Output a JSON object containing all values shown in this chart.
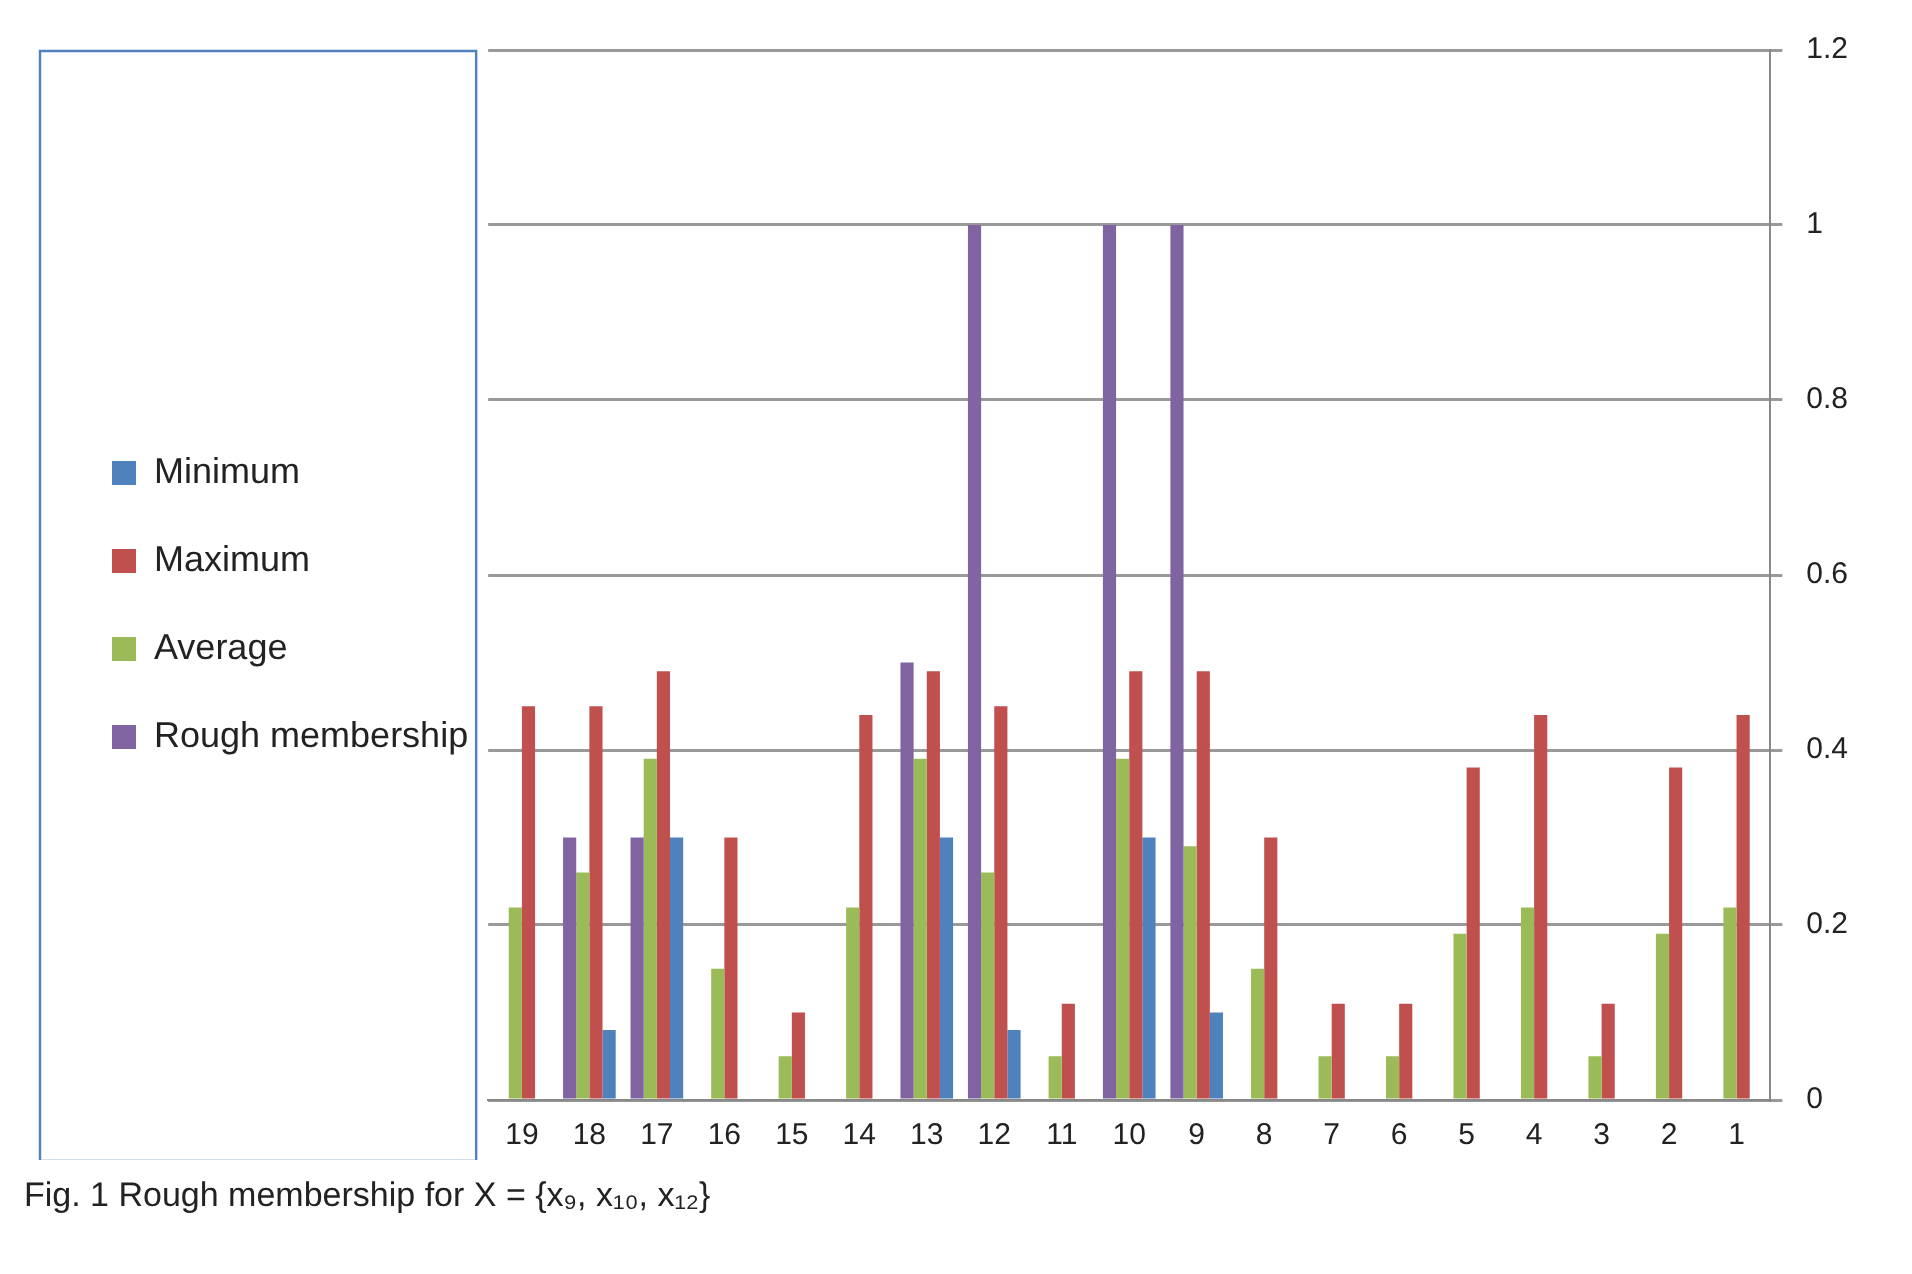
{
  "chart_data": {
    "type": "bar",
    "categories": [
      "19",
      "18",
      "17",
      "16",
      "15",
      "14",
      "13",
      "12",
      "11",
      "10",
      "9",
      "8",
      "7",
      "6",
      "5",
      "4",
      "3",
      "2",
      "1"
    ],
    "series": [
      {
        "name": "Rough membership",
        "color": "#8064a2",
        "values": [
          0,
          0.3,
          0.3,
          0,
          0,
          0,
          0.5,
          1,
          0,
          1,
          1,
          0,
          0,
          0,
          0,
          0,
          0,
          0,
          0
        ]
      },
      {
        "name": "Average",
        "color": "#9bbb59",
        "values": [
          0.22,
          0.26,
          0.39,
          0.15,
          0.05,
          0.22,
          0.39,
          0.26,
          0.05,
          0.39,
          0.29,
          0.15,
          0.05,
          0.05,
          0.19,
          0.22,
          0.05,
          0.19,
          0.22
        ]
      },
      {
        "name": "Maximum",
        "color": "#c0504d",
        "values": [
          0.45,
          0.45,
          0.49,
          0.3,
          0.1,
          0.44,
          0.49,
          0.45,
          0.11,
          0.49,
          0.49,
          0.3,
          0.11,
          0.11,
          0.38,
          0.44,
          0.11,
          0.38,
          0.44
        ]
      },
      {
        "name": "Minimum",
        "color": "#4f81bd",
        "values": [
          0,
          0.08,
          0.3,
          0,
          0,
          0,
          0.3,
          0.08,
          0,
          0.3,
          0.1,
          0,
          0,
          0,
          0,
          0,
          0,
          0,
          0
        ]
      }
    ],
    "ylim": [
      0,
      1.2
    ],
    "yticks": [
      0,
      0.2,
      0.4,
      0.6,
      0.8,
      1,
      1.2
    ],
    "grid": "y",
    "legend": "left",
    "annotations": [
      "Fig. 1  Rough membership for X = {x₉, x₁₀, x₁₂}"
    ]
  }
}
